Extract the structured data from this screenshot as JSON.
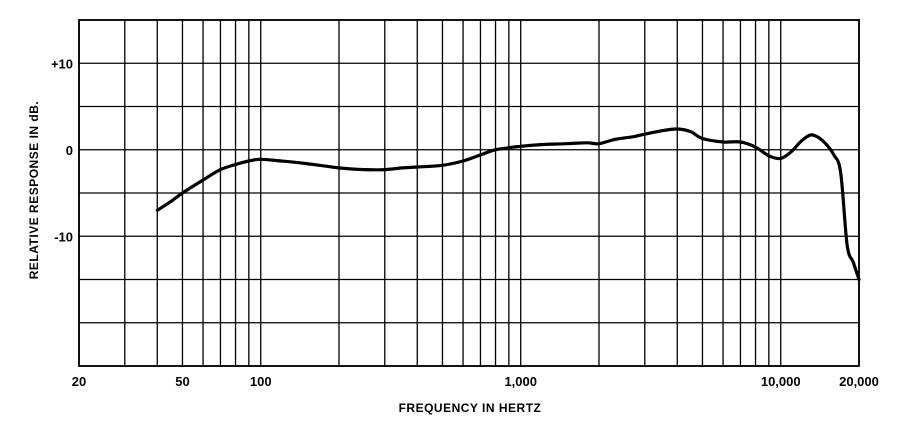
{
  "chart_data": {
    "type": "line",
    "title": "",
    "xlabel": "FREQUENCY IN HERTZ",
    "ylabel": "RELATIVE RESPONSE IN dB.",
    "x_scale": "log",
    "xlim": [
      20,
      20000
    ],
    "ylim": [
      -25,
      15
    ],
    "grid": true,
    "x_ticks": [
      {
        "value": 20,
        "label": "20"
      },
      {
        "value": 50,
        "label": "50"
      },
      {
        "value": 100,
        "label": "100"
      },
      {
        "value": 1000,
        "label": "1,000"
      },
      {
        "value": 10000,
        "label": "10,000"
      },
      {
        "value": 20000,
        "label": "20,000"
      }
    ],
    "y_ticks": [
      {
        "value": 10,
        "label": "+10"
      },
      {
        "value": 0,
        "label": "0"
      },
      {
        "value": -10,
        "label": "-10"
      }
    ],
    "x_gridlines": [
      20,
      30,
      40,
      50,
      60,
      70,
      80,
      90,
      100,
      200,
      300,
      400,
      500,
      600,
      700,
      800,
      900,
      1000,
      2000,
      3000,
      4000,
      5000,
      6000,
      7000,
      8000,
      9000,
      10000,
      20000
    ],
    "y_gridlines": [
      15,
      10,
      5,
      0,
      -5,
      -10,
      -15,
      -20,
      -25
    ],
    "series": [
      {
        "name": "",
        "x": [
          40,
          45,
          50,
          60,
          70,
          80,
          90,
          100,
          120,
          150,
          200,
          250,
          300,
          350,
          400,
          500,
          600,
          700,
          800,
          1000,
          1200,
          1500,
          1800,
          2000,
          2300,
          2700,
          3000,
          3500,
          4000,
          4500,
          5000,
          6000,
          7000,
          8000,
          9000,
          10000,
          11000,
          12000,
          13000,
          14000,
          15000,
          16000,
          17000,
          18000,
          19000,
          20000
        ],
        "y": [
          -7,
          -6,
          -5,
          -3.5,
          -2.3,
          -1.7,
          -1.3,
          -1.1,
          -1.3,
          -1.6,
          -2.1,
          -2.3,
          -2.3,
          -2.1,
          -2,
          -1.8,
          -1.3,
          -0.6,
          0,
          0.4,
          0.6,
          0.7,
          0.8,
          0.7,
          1.2,
          1.5,
          1.8,
          2.2,
          2.4,
          2.1,
          1.3,
          0.9,
          0.9,
          0.3,
          -0.7,
          -1,
          -0.2,
          1,
          1.7,
          1.4,
          0.6,
          -0.6,
          -2.6,
          -11,
          -13,
          -15
        ]
      }
    ]
  }
}
